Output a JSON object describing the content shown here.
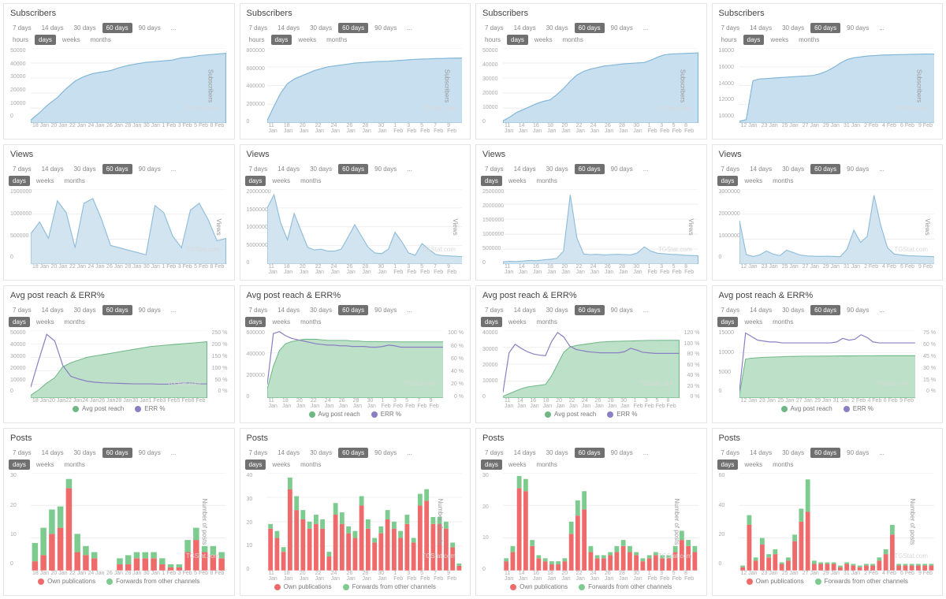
{
  "watermark": "TGStat.com",
  "range_btns": [
    "7 days",
    "14 days",
    "30 days",
    "60 days",
    "90 days",
    "..."
  ],
  "range_active": "60 days",
  "gran_sub": [
    "hours",
    "days",
    "weeks",
    "months"
  ],
  "gran_std": [
    "days",
    "weeks",
    "months"
  ],
  "gran_active": "days",
  "colors": {
    "area_fill": "#c8dff0",
    "area_stroke": "#7fb5d6",
    "views_fill": "#d3e4f1",
    "views_stroke": "#8fbdd9",
    "reach_fill": "#bde0c8",
    "reach_stroke": "#6fb886",
    "err_stroke": "#8a7fc2",
    "posts_own": "#ef6b6b",
    "posts_fwd": "#7ecb8f",
    "grid": "#eeeeee",
    "bg": "#ffffff",
    "text": "#888888"
  },
  "labels": {
    "subscribers": "Subscribers",
    "views": "Views",
    "reach": "Avg post reach & ERR%",
    "posts": "Posts",
    "y_sub": "Subscribers",
    "y_views": "Views",
    "y_posts": "Number of posts",
    "leg_reach": "Avg post reach",
    "leg_err": "ERR %",
    "leg_own": "Own publications",
    "leg_fwd": "Forwards from other channels"
  },
  "cols": [
    {
      "x": [
        "18 Jan",
        "20 Jan",
        "22 Jan",
        "24 Jan",
        "26 Jan",
        "28 Jan",
        "30 Jan",
        "1 Feb",
        "3 Feb",
        "5 Feb",
        "8 Feb"
      ],
      "sub": {
        "yticks": [
          "0",
          "10000",
          "20000",
          "30000",
          "40000",
          "50000"
        ],
        "ymax": 50000,
        "data": [
          2000,
          7000,
          12500,
          17000,
          23000,
          28000,
          31000,
          33000,
          34000,
          35000,
          37000,
          38500,
          39500,
          40500,
          41000,
          41500,
          42000,
          43500,
          44000,
          45000,
          45500,
          46000,
          46500
        ]
      },
      "views": {
        "yticks": [
          "0",
          "500000",
          "1000000",
          "1500000"
        ],
        "ymax": 1600000,
        "data": [
          650000,
          900000,
          550000,
          1350000,
          1100000,
          350000,
          1300000,
          1400000,
          950000,
          400000,
          350000,
          300000,
          250000,
          200000,
          1250000,
          1100000,
          600000,
          350000,
          1150000,
          1300000,
          950000,
          500000,
          550000
        ]
      },
      "reach": {
        "yticks_l": [
          "0",
          "10000",
          "20000",
          "30000",
          "40000",
          "50000"
        ],
        "ymax_l": 50000,
        "yticks_r": [
          "0 %",
          "50 %",
          "100 %",
          "150 %",
          "200 %",
          "250 %"
        ],
        "ymax_r": 250,
        "reach": [
          2000,
          6000,
          11000,
          15000,
          23000,
          26000,
          28000,
          30000,
          31000,
          32000,
          33000,
          34000,
          35000,
          36000,
          37000,
          38000,
          38500,
          39000,
          39500,
          40000,
          40500,
          41000,
          41500
        ],
        "err": [
          40,
          140,
          235,
          210,
          120,
          80,
          70,
          62,
          58,
          56,
          55,
          54,
          53,
          52,
          52,
          52,
          51,
          51,
          53,
          55,
          56,
          52,
          52
        ]
      },
      "posts": {
        "yticks": [
          "0",
          "10",
          "20",
          "30"
        ],
        "ymax": 32,
        "own": [
          3,
          5,
          12,
          14,
          27,
          6,
          5,
          4,
          0,
          0,
          2,
          2,
          4,
          4,
          4,
          2,
          1,
          1,
          6,
          10,
          6,
          5,
          4
        ],
        "fwd": [
          6,
          9,
          8,
          7,
          3,
          6,
          3,
          2,
          0,
          0,
          2,
          3,
          2,
          2,
          2,
          2,
          1,
          1,
          4,
          4,
          2,
          3,
          2
        ]
      }
    },
    {
      "x": [
        "11 Jan",
        "18 Jan",
        "20 Jan",
        "22 Jan",
        "24 Jan",
        "26 Jan",
        "28 Jan",
        "30 Jan",
        "1 Feb",
        "3 Feb",
        "5 Feb",
        "7 Feb",
        "9 Feb"
      ],
      "sub": {
        "yticks": [
          "0",
          "200000",
          "400000",
          "600000",
          "800000"
        ],
        "ymax": 800000,
        "data": [
          30000,
          180000,
          320000,
          420000,
          470000,
          500000,
          530000,
          560000,
          580000,
          600000,
          610000,
          620000,
          630000,
          640000,
          645000,
          650000,
          655000,
          658000,
          660000,
          665000,
          670000,
          675000,
          680000,
          683000,
          685000,
          688000,
          690000,
          692000,
          693000,
          694000
        ]
      },
      "views": {
        "yticks": [
          "0",
          "5000000",
          "10000000",
          "15000000",
          "20000000"
        ],
        "ymax": 20000000,
        "data": [
          15000000,
          18500000,
          11000000,
          6500000,
          13500000,
          9000000,
          4500000,
          3800000,
          4000000,
          3500000,
          3500000,
          4000000,
          7200000,
          10500000,
          7500000,
          4500000,
          3000000,
          2800000,
          4000000,
          8500000,
          6000000,
          3000000,
          2400000,
          5500000,
          4000000,
          2600000,
          2300000,
          2200000,
          2100000,
          2000000
        ]
      },
      "reach": {
        "yticks_l": [
          "0",
          "200000",
          "400000",
          "600000"
        ],
        "ymax_l": 600000,
        "yticks_r": [
          "0 %",
          "20 %",
          "40 %",
          "60 %",
          "80 %",
          "100 %"
        ],
        "ymax_r": 100,
        "reach": [
          80000,
          280000,
          420000,
          480000,
          500000,
          510000,
          520000,
          520000,
          520000,
          515000,
          510000,
          510000,
          510000,
          510000,
          505000,
          505000,
          500000,
          500000,
          500000,
          498000,
          498000,
          498000,
          497000,
          497000,
          497000,
          497000,
          497000,
          497000,
          497000,
          497000
        ],
        "err": [
          20,
          95,
          98,
          92,
          88,
          86,
          84,
          82,
          80,
          79,
          78,
          78,
          77,
          77,
          76,
          76,
          76,
          75,
          75,
          76,
          78,
          77,
          75,
          75,
          75,
          75,
          75,
          75,
          75,
          75
        ]
      },
      "posts": {
        "yticks": [
          "0",
          "10",
          "20",
          "30",
          "40"
        ],
        "ymax": 42,
        "own": [
          18,
          14,
          8,
          35,
          26,
          22,
          18,
          20,
          18,
          6,
          24,
          20,
          16,
          14,
          28,
          18,
          12,
          16,
          22,
          18,
          14,
          20,
          12,
          28,
          30,
          20,
          20,
          18,
          10,
          2
        ],
        "fwd": [
          2,
          3,
          2,
          5,
          6,
          4,
          3,
          4,
          4,
          2,
          5,
          5,
          3,
          3,
          4,
          4,
          2,
          3,
          4,
          3,
          3,
          4,
          2,
          5,
          5,
          3,
          3,
          3,
          2,
          1
        ]
      }
    },
    {
      "x": [
        "11 Jan",
        "14 Jan",
        "16 Jan",
        "18 Jan",
        "20 Jan",
        "22 Jan",
        "24 Jan",
        "26 Jan",
        "28 Jan",
        "30 Jan",
        "1 Feb",
        "3 Feb",
        "5 Feb",
        "8 Feb"
      ],
      "sub": {
        "yticks": [
          "0",
          "10000",
          "20000",
          "30000",
          "40000",
          "50000"
        ],
        "ymax": 50000,
        "data": [
          1500,
          4000,
          7000,
          9000,
          11000,
          13000,
          14500,
          15500,
          19000,
          23000,
          28000,
          32000,
          34500,
          36000,
          37000,
          38000,
          38500,
          39000,
          39500,
          39800,
          40100,
          40400,
          42000,
          44000,
          45500,
          46000,
          46200,
          46400,
          46600,
          46800
        ]
      },
      "views": {
        "yticks": [
          "0",
          "500000",
          "1000000",
          "1500000",
          "2000000",
          "2500000"
        ],
        "ymax": 2600000,
        "data": [
          80000,
          100000,
          90000,
          110000,
          130000,
          120000,
          150000,
          170000,
          200000,
          450000,
          2400000,
          900000,
          350000,
          330000,
          340000,
          320000,
          330000,
          340000,
          330000,
          320000,
          390000,
          600000,
          450000,
          380000,
          360000,
          340000,
          330000,
          310000,
          300000,
          290000
        ]
      },
      "reach": {
        "yticks_l": [
          "0",
          "10000",
          "20000",
          "30000",
          "40000"
        ],
        "ymax_l": 40000,
        "yticks_r": [
          "0 %",
          "20 %",
          "40 %",
          "60 %",
          "80 %",
          "100 %",
          "120 %"
        ],
        "ymax_r": 120,
        "reach": [
          1000,
          2500,
          4000,
          5500,
          6500,
          7000,
          7500,
          8000,
          13000,
          20000,
          27000,
          30000,
          31000,
          31500,
          32000,
          32500,
          33000,
          33200,
          33400,
          33500,
          33600,
          33700,
          33800,
          33900,
          34000,
          34000,
          34100,
          34100,
          34100,
          34100
        ],
        "err": [
          10,
          80,
          95,
          88,
          82,
          78,
          76,
          75,
          100,
          116,
          108,
          92,
          86,
          84,
          82,
          81,
          80,
          80,
          80,
          80,
          82,
          88,
          85,
          81,
          80,
          79,
          79,
          79,
          79,
          79
        ]
      },
      "posts": {
        "yticks": [
          "0",
          "10",
          "20",
          "30"
        ],
        "ymax": 32,
        "own": [
          3,
          6,
          27,
          26,
          8,
          4,
          3,
          2,
          2,
          3,
          12,
          18,
          20,
          6,
          4,
          4,
          5,
          6,
          8,
          6,
          5,
          3,
          4,
          5,
          4,
          4,
          6,
          10,
          8,
          6
        ],
        "fwd": [
          1,
          2,
          4,
          4,
          2,
          1,
          1,
          1,
          1,
          1,
          4,
          5,
          6,
          2,
          1,
          1,
          1,
          2,
          2,
          2,
          1,
          1,
          1,
          1,
          1,
          1,
          2,
          3,
          2,
          2
        ]
      }
    },
    {
      "x": [
        "12 Jan",
        "23 Jan",
        "25 Jan",
        "27 Jan",
        "29 Jan",
        "31 Jan",
        "2 Feb",
        "4 Feb",
        "6 Feb",
        "9 Feb"
      ],
      "sub": {
        "yticks": [
          "10000",
          "12000",
          "14000",
          "16000",
          "18000"
        ],
        "ymin": 10000,
        "ymax": 18500,
        "data": [
          10200,
          10400,
          14800,
          15000,
          15050,
          15100,
          15150,
          15200,
          15250,
          15300,
          15350,
          15400,
          15600,
          15900,
          16300,
          16800,
          17200,
          17400,
          17500,
          17600,
          17650,
          17700,
          17720,
          17740,
          17760,
          17780,
          17800,
          17810,
          17820,
          17830
        ]
      },
      "views": {
        "yticks": [
          "0",
          "1000000",
          "2000000",
          "3000000"
        ],
        "ymax": 3100000,
        "data": [
          1800000,
          400000,
          320000,
          380000,
          550000,
          420000,
          350000,
          580000,
          480000,
          380000,
          340000,
          330000,
          320000,
          330000,
          320000,
          310000,
          620000,
          1400000,
          900000,
          1150000,
          2850000,
          1600000,
          680000,
          420000,
          380000,
          350000,
          340000,
          330000,
          320000,
          310000
        ]
      },
      "reach": {
        "yticks_l": [
          "0",
          "5000",
          "10000",
          "15000"
        ],
        "ymax_l": 16000,
        "yticks_r": [
          "0 %",
          "15 %",
          "30 %",
          "45 %",
          "60 %",
          "75 %"
        ],
        "ymax_r": 75,
        "reach": [
          800,
          9200,
          9400,
          9500,
          9600,
          9650,
          9700,
          9750,
          9800,
          9820,
          9850,
          9870,
          9880,
          9890,
          9900,
          9910,
          9920,
          9930,
          9940,
          9950,
          9960,
          9970,
          9975,
          9980,
          9982,
          9984,
          9986,
          9988,
          9990,
          9992
        ],
        "err": [
          8,
          72,
          68,
          64,
          63,
          62,
          62,
          61,
          61,
          61,
          61,
          61,
          61,
          61,
          61,
          61,
          62,
          66,
          64,
          65,
          70,
          67,
          62,
          61,
          61,
          61,
          61,
          61,
          61,
          61
        ]
      },
      "posts": {
        "yticks": [
          "0",
          "20",
          "40",
          "60"
        ],
        "ymax": 60,
        "own": [
          2,
          28,
          6,
          16,
          8,
          10,
          4,
          6,
          18,
          30,
          36,
          4,
          4,
          4,
          4,
          2,
          4,
          3,
          2,
          3,
          3,
          6,
          10,
          22,
          3,
          3,
          3,
          3,
          3,
          3
        ],
        "fwd": [
          1,
          6,
          2,
          4,
          2,
          3,
          1,
          2,
          4,
          8,
          20,
          2,
          1,
          1,
          1,
          1,
          1,
          1,
          1,
          1,
          1,
          2,
          3,
          6,
          1,
          1,
          1,
          1,
          1,
          1
        ]
      }
    }
  ]
}
